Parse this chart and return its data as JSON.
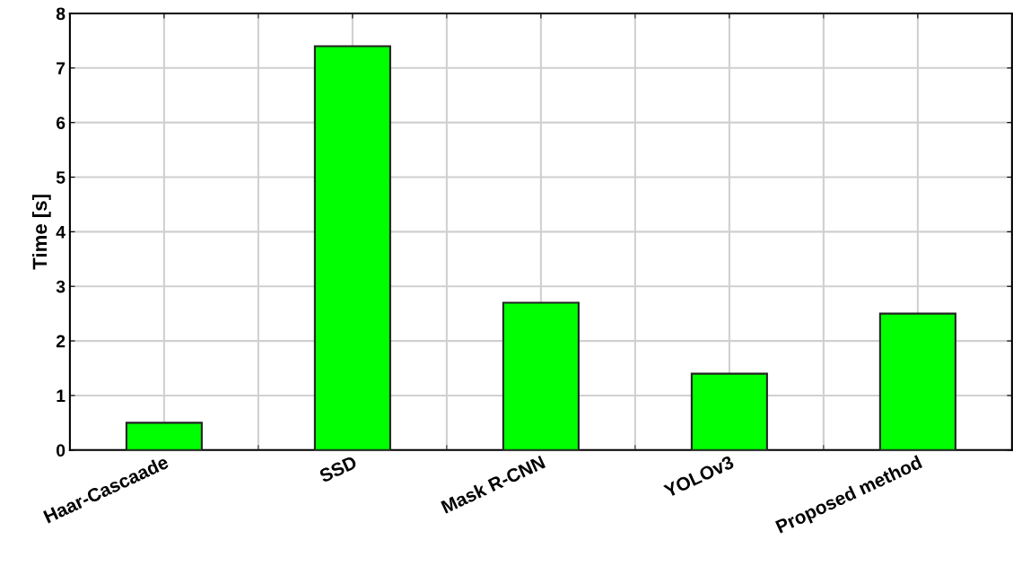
{
  "chart_data": {
    "type": "bar",
    "ylabel": "Time [s]",
    "categories": [
      "Haar-Cascaade",
      "SSD",
      "Mask R-CNN",
      "YOLOv3",
      "Proposed method"
    ],
    "values": [
      0.5,
      7.4,
      2.7,
      1.4,
      2.5
    ],
    "color": "#00ff00",
    "ylim": [
      0,
      8
    ],
    "yticks": [
      0,
      1,
      2,
      3,
      4,
      5,
      6,
      7,
      8
    ],
    "grid": true
  }
}
